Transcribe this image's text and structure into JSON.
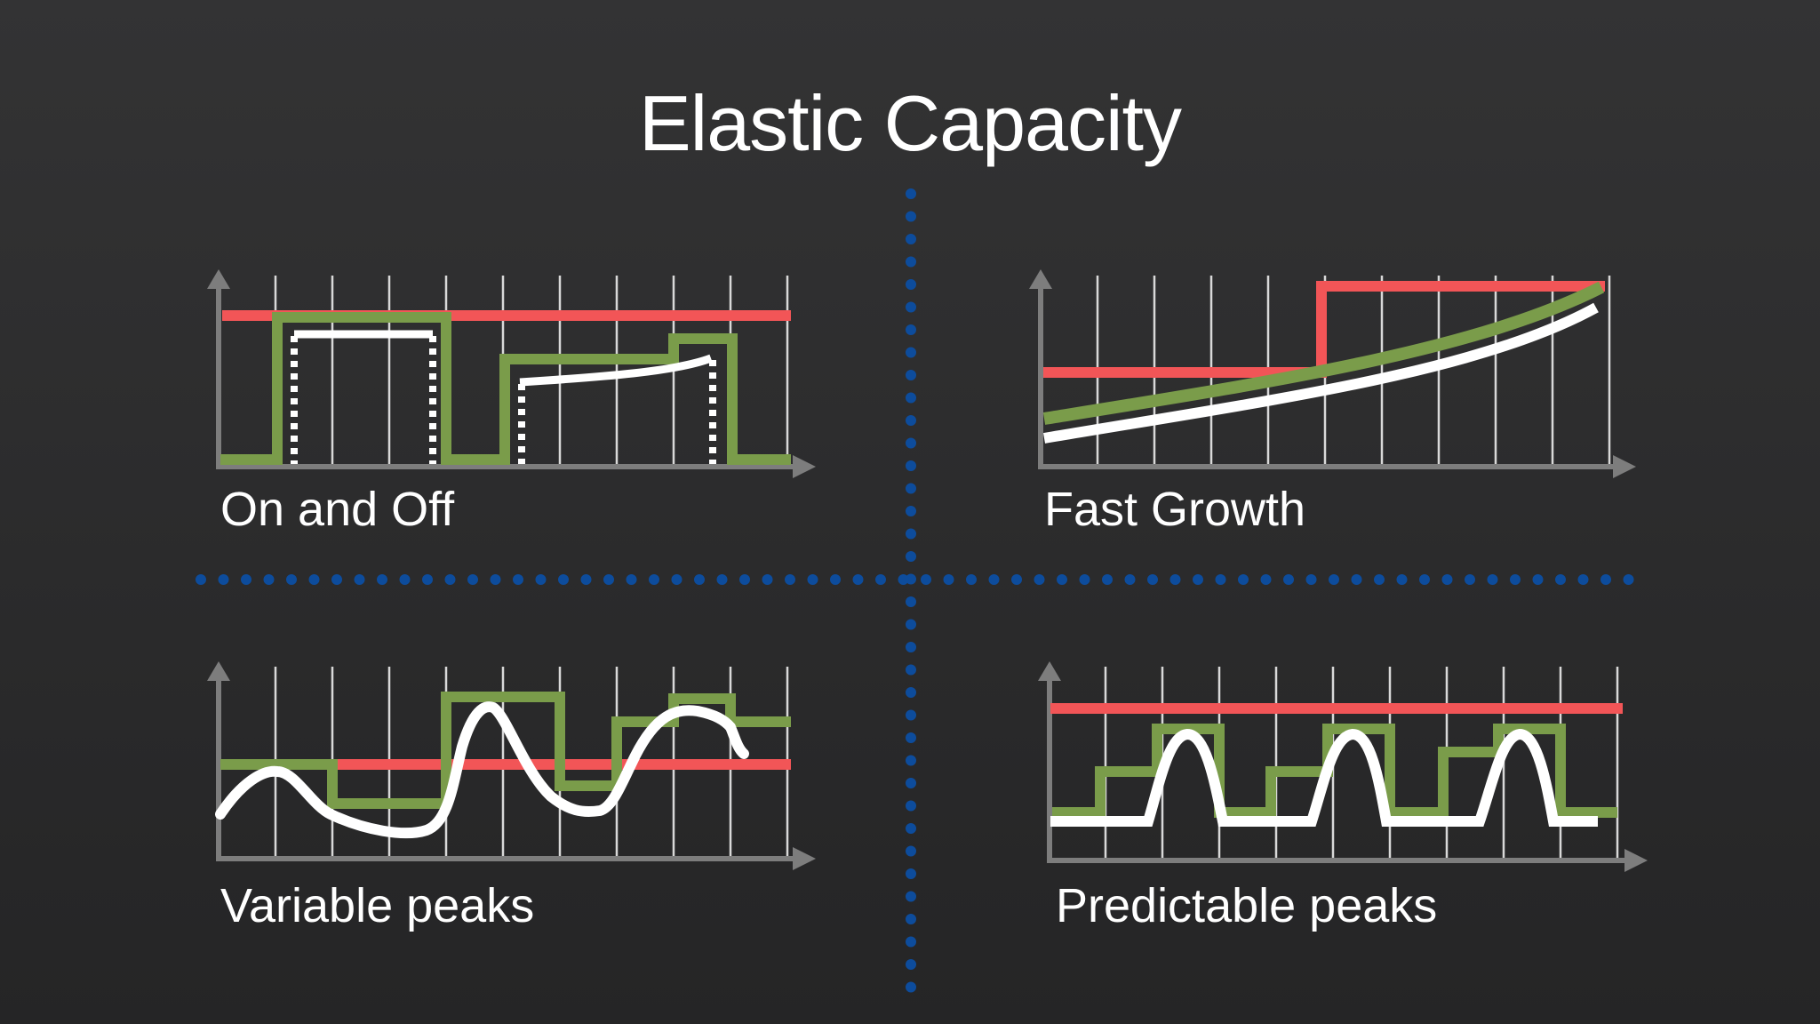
{
  "slide": {
    "title": "Elastic Capacity"
  },
  "panels": [
    {
      "id": "on-and-off",
      "label": "On and Off"
    },
    {
      "id": "fast-growth",
      "label": "Fast Growth"
    },
    {
      "id": "variable-peaks",
      "label": "Variable peaks"
    },
    {
      "id": "predictable-peaks",
      "label": "Predictable peaks"
    }
  ],
  "colors": {
    "fixed_capacity": "#f25557",
    "elastic_capacity": "#7a9c4a",
    "demand": "#ffffff",
    "axis": "#7d7d7d",
    "gridline": "#d9d9d9",
    "divider": "#0d4c9c"
  },
  "icons": {
    "axis_arrow": "triangle-arrow-icon"
  }
}
